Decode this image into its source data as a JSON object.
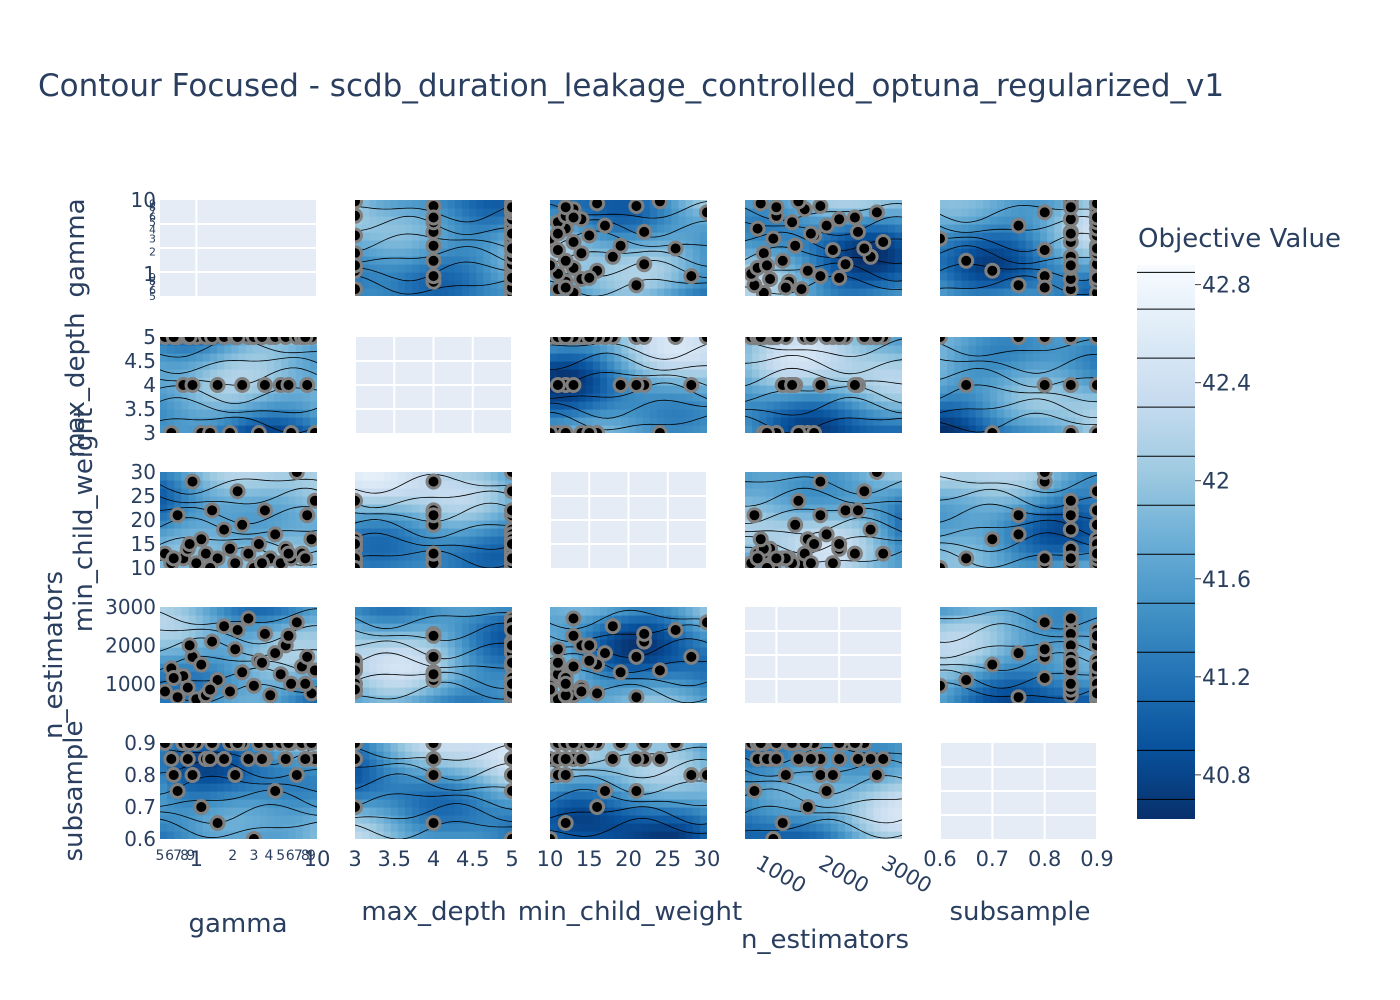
{
  "title": "Contour Focused - scdb_duration_leakage_controlled_optuna_regularized_v1",
  "chart_data": {
    "type": "contour",
    "params": [
      {
        "name": "gamma",
        "scale": "log",
        "range": [
          0.5,
          10
        ],
        "ticks": [
          {
            "v": 1,
            "label": "1"
          },
          {
            "v": 10,
            "label": "10"
          }
        ],
        "minor": [
          {
            "v": 0.5,
            "label": "5"
          },
          {
            "v": 0.6,
            "label": "6"
          },
          {
            "v": 0.7,
            "label": "7"
          },
          {
            "v": 0.8,
            "label": "8"
          },
          {
            "v": 0.9,
            "label": "9"
          },
          {
            "v": 2,
            "label": "2"
          },
          {
            "v": 3,
            "label": "3"
          },
          {
            "v": 4,
            "label": "4"
          },
          {
            "v": 5,
            "label": "5"
          },
          {
            "v": 6,
            "label": "6"
          },
          {
            "v": 7,
            "label": "7"
          },
          {
            "v": 8,
            "label": "8"
          },
          {
            "v": 9,
            "label": "9"
          }
        ]
      },
      {
        "name": "max_depth",
        "scale": "linear",
        "range": [
          3,
          5
        ],
        "ticks": [
          {
            "v": 3,
            "label": "3"
          },
          {
            "v": 3.5,
            "label": "3.5"
          },
          {
            "v": 4,
            "label": "4"
          },
          {
            "v": 4.5,
            "label": "4.5"
          },
          {
            "v": 5,
            "label": "5"
          }
        ]
      },
      {
        "name": "min_child_weight",
        "scale": "linear",
        "range": [
          10,
          30
        ],
        "ticks": [
          {
            "v": 10,
            "label": "10"
          },
          {
            "v": 15,
            "label": "15"
          },
          {
            "v": 20,
            "label": "20"
          },
          {
            "v": 25,
            "label": "25"
          },
          {
            "v": 30,
            "label": "30"
          }
        ]
      },
      {
        "name": "n_estimators",
        "scale": "linear",
        "range": [
          500,
          3000
        ],
        "ticks": [
          {
            "v": 1000,
            "label": "1000"
          },
          {
            "v": 2000,
            "label": "2000"
          },
          {
            "v": 3000,
            "label": "3000"
          }
        ]
      },
      {
        "name": "subsample",
        "scale": "linear",
        "range": [
          0.6,
          0.9
        ],
        "ticks": [
          {
            "v": 0.6,
            "label": "0.6"
          },
          {
            "v": 0.7,
            "label": "0.7"
          },
          {
            "v": 0.8,
            "label": "0.8"
          },
          {
            "v": 0.9,
            "label": "0.9"
          }
        ]
      }
    ],
    "colorbar": {
      "title": "Objective Value",
      "range": [
        40.62,
        42.88
      ],
      "ticks": [
        {
          "v": 40.8,
          "label": "40.8"
        },
        {
          "v": 41.2,
          "label": "41.2"
        },
        {
          "v": 41.6,
          "label": "41.6"
        },
        {
          "v": 42,
          "label": "42"
        },
        {
          "v": 42.4,
          "label": "42.4"
        },
        {
          "v": 42.8,
          "label": "42.8"
        }
      ],
      "levels": [
        40.7,
        40.9,
        41.1,
        41.3,
        41.5,
        41.7,
        41.9,
        42.1,
        42.3,
        42.5,
        42.7,
        42.85
      ],
      "colorscale": [
        "#08306b",
        "#08519c",
        "#2171b5",
        "#4292c6",
        "#6baed6",
        "#9ecae1",
        "#c6dbef",
        "#deebf7",
        "#f7fbff"
      ]
    },
    "trials": [
      {
        "gamma": 0.55,
        "max_depth": 5,
        "min_child_weight": 13,
        "n_estimators": 800,
        "subsample": 0.9
      },
      {
        "gamma": 0.62,
        "max_depth": 3,
        "min_child_weight": 11,
        "n_estimators": 1400,
        "subsample": 0.85
      },
      {
        "gamma": 0.7,
        "max_depth": 5,
        "min_child_weight": 21,
        "n_estimators": 650,
        "subsample": 0.75
      },
      {
        "gamma": 0.78,
        "max_depth": 4,
        "min_child_weight": 12,
        "n_estimators": 1200,
        "subsample": 0.9
      },
      {
        "gamma": 0.85,
        "max_depth": 5,
        "min_child_weight": 14,
        "n_estimators": 900,
        "subsample": 0.85
      },
      {
        "gamma": 0.93,
        "max_depth": 4,
        "min_child_weight": 28,
        "n_estimators": 1700,
        "subsample": 0.8
      },
      {
        "gamma": 1.0,
        "max_depth": 5,
        "min_child_weight": 11,
        "n_estimators": 600,
        "subsample": 0.9
      },
      {
        "gamma": 1.1,
        "max_depth": 3,
        "min_child_weight": 16,
        "n_estimators": 1500,
        "subsample": 0.7
      },
      {
        "gamma": 1.2,
        "max_depth": 5,
        "min_child_weight": 13,
        "n_estimators": 700,
        "subsample": 0.85
      },
      {
        "gamma": 1.35,
        "max_depth": 5,
        "min_child_weight": 22,
        "n_estimators": 2100,
        "subsample": 0.9
      },
      {
        "gamma": 1.5,
        "max_depth": 4,
        "min_child_weight": 12,
        "n_estimators": 1100,
        "subsample": 0.65
      },
      {
        "gamma": 1.7,
        "max_depth": 5,
        "min_child_weight": 18,
        "n_estimators": 2500,
        "subsample": 0.85
      },
      {
        "gamma": 1.9,
        "max_depth": 3,
        "min_child_weight": 14,
        "n_estimators": 800,
        "subsample": 0.9
      },
      {
        "gamma": 2.1,
        "max_depth": 5,
        "min_child_weight": 11,
        "n_estimators": 1900,
        "subsample": 0.8
      },
      {
        "gamma": 2.4,
        "max_depth": 4,
        "min_child_weight": 19,
        "n_estimators": 1300,
        "subsample": 0.9
      },
      {
        "gamma": 2.7,
        "max_depth": 5,
        "min_child_weight": 13,
        "n_estimators": 2700,
        "subsample": 0.85
      },
      {
        "gamma": 3.0,
        "max_depth": 5,
        "min_child_weight": 10,
        "n_estimators": 950,
        "subsample": 0.6
      },
      {
        "gamma": 3.3,
        "max_depth": 3,
        "min_child_weight": 15,
        "n_estimators": 1600,
        "subsample": 0.9
      },
      {
        "gamma": 3.7,
        "max_depth": 4,
        "min_child_weight": 22,
        "n_estimators": 2300,
        "subsample": 0.85
      },
      {
        "gamma": 4.1,
        "max_depth": 5,
        "min_child_weight": 12,
        "n_estimators": 700,
        "subsample": 0.9
      },
      {
        "gamma": 4.5,
        "max_depth": 5,
        "min_child_weight": 17,
        "n_estimators": 1800,
        "subsample": 0.75
      },
      {
        "gamma": 5.0,
        "max_depth": 4,
        "min_child_weight": 11,
        "n_estimators": 1250,
        "subsample": 0.9
      },
      {
        "gamma": 5.5,
        "max_depth": 5,
        "min_child_weight": 14,
        "n_estimators": 2000,
        "subsample": 0.85
      },
      {
        "gamma": 6.1,
        "max_depth": 3,
        "min_child_weight": 12,
        "n_estimators": 1000,
        "subsample": 0.9
      },
      {
        "gamma": 6.8,
        "max_depth": 5,
        "min_child_weight": 30,
        "n_estimators": 2600,
        "subsample": 0.8
      },
      {
        "gamma": 7.5,
        "max_depth": 5,
        "min_child_weight": 13,
        "n_estimators": 1450,
        "subsample": 0.9
      },
      {
        "gamma": 8.3,
        "max_depth": 4,
        "min_child_weight": 21,
        "n_estimators": 1700,
        "subsample": 0.85
      },
      {
        "gamma": 9.0,
        "max_depth": 5,
        "min_child_weight": 16,
        "n_estimators": 750,
        "subsample": 0.9
      },
      {
        "gamma": 9.6,
        "max_depth": 3,
        "min_child_weight": 24,
        "n_estimators": 1350,
        "subsample": 0.85
      },
      {
        "gamma": 0.65,
        "max_depth": 5,
        "min_child_weight": 12,
        "n_estimators": 1150,
        "subsample": 0.8
      },
      {
        "gamma": 0.88,
        "max_depth": 5,
        "min_child_weight": 15,
        "n_estimators": 2000,
        "subsample": 0.9
      },
      {
        "gamma": 1.3,
        "max_depth": 3,
        "min_child_weight": 10,
        "n_estimators": 850,
        "subsample": 0.85
      },
      {
        "gamma": 2.2,
        "max_depth": 5,
        "min_child_weight": 26,
        "n_estimators": 2400,
        "subsample": 0.9
      },
      {
        "gamma": 3.5,
        "max_depth": 5,
        "min_child_weight": 11,
        "n_estimators": 1550,
        "subsample": 0.85
      },
      {
        "gamma": 5.8,
        "max_depth": 4,
        "min_child_weight": 13,
        "n_estimators": 2250,
        "subsample": 0.9
      },
      {
        "gamma": 8.0,
        "max_depth": 5,
        "min_child_weight": 12,
        "n_estimators": 1000,
        "subsample": 0.85
      }
    ]
  }
}
